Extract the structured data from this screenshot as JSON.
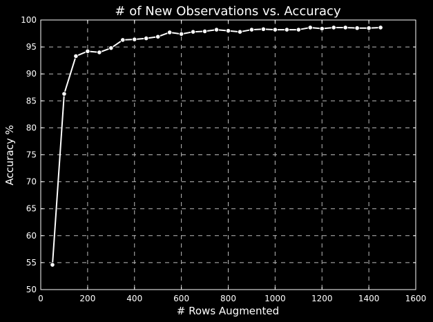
{
  "chart_data": {
    "type": "line",
    "title": "# of New Observations vs. Accuracy",
    "xlabel": "# Rows Augmented",
    "ylabel": "Accuracy %",
    "xlim": [
      0,
      1600
    ],
    "ylim": [
      50,
      100
    ],
    "xticks": [
      0,
      200,
      400,
      600,
      800,
      1000,
      1200,
      1400,
      1600
    ],
    "yticks": [
      50,
      55,
      60,
      65,
      70,
      75,
      80,
      85,
      90,
      95,
      100
    ],
    "grid": true,
    "grid_style": "dashed",
    "background": "#000000",
    "series": [
      {
        "color": "#ffffff",
        "marker": "circle",
        "x": [
          50,
          100,
          150,
          200,
          250,
          300,
          350,
          400,
          450,
          500,
          550,
          600,
          650,
          700,
          750,
          800,
          850,
          900,
          950,
          1000,
          1050,
          1100,
          1150,
          1200,
          1250,
          1300,
          1350,
          1400,
          1450
        ],
        "y": [
          54.6,
          86.3,
          93.3,
          94.2,
          94.0,
          94.8,
          96.3,
          96.4,
          96.6,
          96.9,
          97.7,
          97.4,
          97.8,
          97.9,
          98.2,
          98.0,
          97.8,
          98.2,
          98.3,
          98.2,
          98.2,
          98.2,
          98.6,
          98.4,
          98.6,
          98.6,
          98.5,
          98.5,
          98.6
        ]
      }
    ]
  }
}
